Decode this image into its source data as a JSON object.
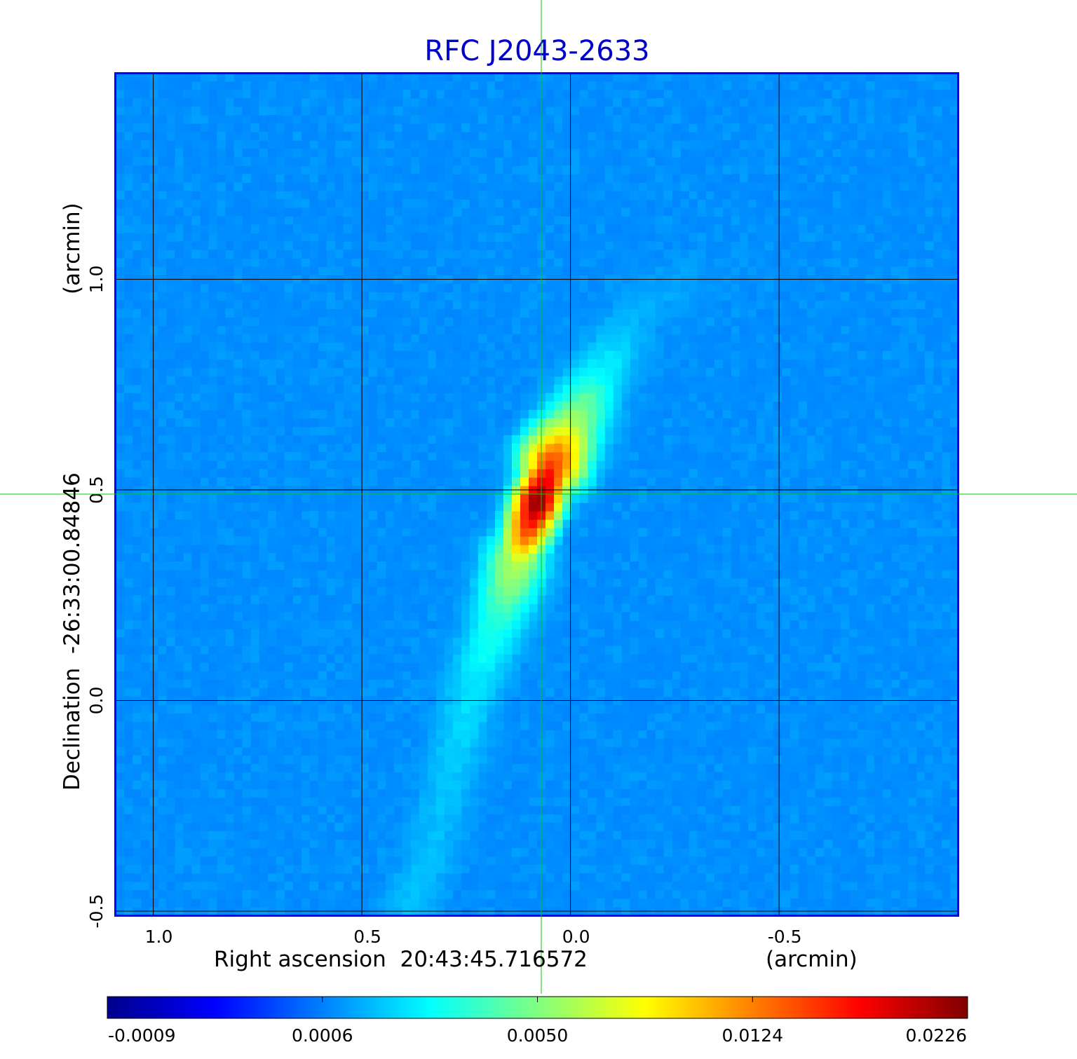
{
  "chart_data": {
    "type": "heatmap",
    "title": "RFC J2043-2633",
    "xlabel": "Right ascension  20:43:45.716572",
    "xunit": "(arcmin)",
    "ylabel": "Declination  -26:33:00.84846",
    "yunit": "(arcmin)",
    "xlim": [
      1.09,
      -0.93
    ],
    "ylim": [
      -0.51,
      1.49
    ],
    "xticks": [
      {
        "value": 1.0,
        "label": "1.0"
      },
      {
        "value": 0.5,
        "label": "0.5"
      },
      {
        "value": 0.0,
        "label": "0.0"
      },
      {
        "value": -0.5,
        "label": "-0.5"
      }
    ],
    "yticks": [
      {
        "value": 1.0,
        "label": "1.0"
      },
      {
        "value": 0.5,
        "label": "0.5"
      },
      {
        "value": 0.0,
        "label": "0.0"
      },
      {
        "value": -0.5,
        "label": "-0.5"
      }
    ],
    "grid": true,
    "crosshair": {
      "x": 0.07,
      "y": 0.49
    },
    "colorbar": {
      "placement": "bottom",
      "tick_labels": [
        "-0.0009",
        "0.0006",
        "0.0050",
        "0.0124",
        "0.0226"
      ],
      "colormap": [
        "#00008c",
        "#0000ff",
        "#0080ff",
        "#00ffff",
        "#80ff80",
        "#ffff00",
        "#ff8000",
        "#ff0000",
        "#800000"
      ]
    },
    "peak_value": 0.0226,
    "jet": [
      {
        "x": 0.38,
        "y": -0.49,
        "value": 0.0018
      },
      {
        "x": 0.33,
        "y": -0.35,
        "value": 0.0016
      },
      {
        "x": 0.29,
        "y": -0.18,
        "value": 0.0018
      },
      {
        "x": 0.23,
        "y": 0.05,
        "value": 0.0024
      },
      {
        "x": 0.17,
        "y": 0.2,
        "value": 0.0036
      },
      {
        "x": 0.13,
        "y": 0.33,
        "value": 0.0065
      },
      {
        "x": 0.08,
        "y": 0.47,
        "value": 0.0226
      },
      {
        "x": 0.04,
        "y": 0.57,
        "value": 0.0145
      },
      {
        "x": -0.01,
        "y": 0.66,
        "value": 0.006
      },
      {
        "x": -0.07,
        "y": 0.77,
        "value": 0.0028
      },
      {
        "x": -0.16,
        "y": 0.92,
        "value": 0.0014
      },
      {
        "x": -0.3,
        "y": 1.02,
        "value": 0.0011
      }
    ],
    "colors": {
      "title": "#0000cc",
      "crosshair": "#00cc00",
      "frame": "#0000ff",
      "grid": "#000000"
    }
  }
}
